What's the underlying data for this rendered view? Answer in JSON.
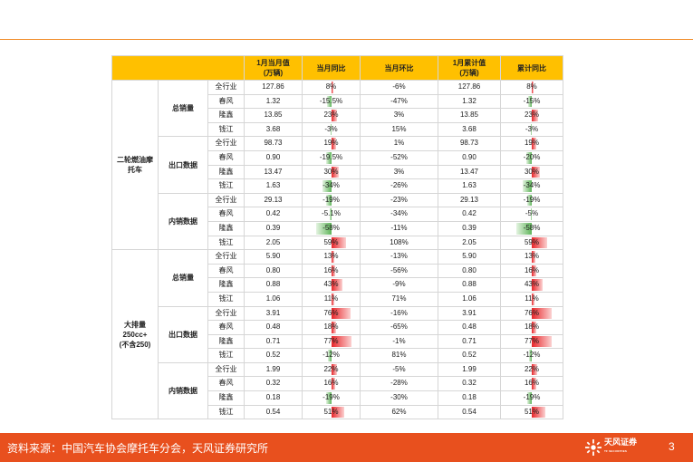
{
  "headers": {
    "month_value": "1月当月值\n(万辆)",
    "month_yoy": "当月同比",
    "month_mom": "当月环比",
    "cum_value": "1月累计值\n(万辆)",
    "cum_yoy": "累计同比"
  },
  "categories": {
    "fuel_moto": "二轮燃油摩\n托车",
    "large_disp": "大排量\n250cc+\n(不含250)"
  },
  "subgroups": {
    "total": "总销量",
    "export": "出口数据",
    "domestic": "内销数据"
  },
  "rows": [
    {
      "company": "全行业",
      "month": "127.86",
      "yoy": "8%",
      "yoy_pct": 8,
      "mom": "-6%",
      "cum": "127.86",
      "cum_yoy": "8%",
      "cum_yoy_pct": 8
    },
    {
      "company": "春风",
      "month": "1.32",
      "yoy": "-15.5%",
      "yoy_pct": -15.5,
      "mom": "-47%",
      "cum": "1.32",
      "cum_yoy": "-15%",
      "cum_yoy_pct": -15
    },
    {
      "company": "隆鑫",
      "month": "13.85",
      "yoy": "23%",
      "yoy_pct": 23,
      "mom": "3%",
      "cum": "13.85",
      "cum_yoy": "23%",
      "cum_yoy_pct": 23
    },
    {
      "company": "钱江",
      "month": "3.68",
      "yoy": "-3%",
      "yoy_pct": -3,
      "mom": "15%",
      "cum": "3.68",
      "cum_yoy": "-3%",
      "cum_yoy_pct": -3
    },
    {
      "company": "全行业",
      "month": "98.73",
      "yoy": "19%",
      "yoy_pct": 19,
      "mom": "1%",
      "cum": "98.73",
      "cum_yoy": "19%",
      "cum_yoy_pct": 19
    },
    {
      "company": "春风",
      "month": "0.90",
      "yoy": "-19.5%",
      "yoy_pct": -19.5,
      "mom": "-52%",
      "cum": "0.90",
      "cum_yoy": "-20%",
      "cum_yoy_pct": -20
    },
    {
      "company": "隆鑫",
      "month": "13.47",
      "yoy": "30%",
      "yoy_pct": 30,
      "mom": "3%",
      "cum": "13.47",
      "cum_yoy": "30%",
      "cum_yoy_pct": 30
    },
    {
      "company": "钱江",
      "month": "1.63",
      "yoy": "-34%",
      "yoy_pct": -34,
      "mom": "-26%",
      "cum": "1.63",
      "cum_yoy": "-34%",
      "cum_yoy_pct": -34
    },
    {
      "company": "全行业",
      "month": "29.13",
      "yoy": "-19%",
      "yoy_pct": -19,
      "mom": "-23%",
      "cum": "29.13",
      "cum_yoy": "-19%",
      "cum_yoy_pct": -19
    },
    {
      "company": "春风",
      "month": "0.42",
      "yoy": "-5.1%",
      "yoy_pct": -5.1,
      "mom": "-34%",
      "cum": "0.42",
      "cum_yoy": "-5%",
      "cum_yoy_pct": -5
    },
    {
      "company": "隆鑫",
      "month": "0.39",
      "yoy": "-58%",
      "yoy_pct": -58,
      "mom": "-11%",
      "cum": "0.39",
      "cum_yoy": "-58%",
      "cum_yoy_pct": -58
    },
    {
      "company": "钱江",
      "month": "2.05",
      "yoy": "59%",
      "yoy_pct": 59,
      "mom": "108%",
      "cum": "2.05",
      "cum_yoy": "59%",
      "cum_yoy_pct": 59
    },
    {
      "company": "全行业",
      "month": "5.90",
      "yoy": "13%",
      "yoy_pct": 13,
      "mom": "-13%",
      "cum": "5.90",
      "cum_yoy": "13%",
      "cum_yoy_pct": 13
    },
    {
      "company": "春风",
      "month": "0.80",
      "yoy": "16%",
      "yoy_pct": 16,
      "mom": "-56%",
      "cum": "0.80",
      "cum_yoy": "16%",
      "cum_yoy_pct": 16
    },
    {
      "company": "隆鑫",
      "month": "0.88",
      "yoy": "43%",
      "yoy_pct": 43,
      "mom": "-9%",
      "cum": "0.88",
      "cum_yoy": "43%",
      "cum_yoy_pct": 43
    },
    {
      "company": "钱江",
      "month": "1.06",
      "yoy": "11%",
      "yoy_pct": 11,
      "mom": "71%",
      "cum": "1.06",
      "cum_yoy": "11%",
      "cum_yoy_pct": 11
    },
    {
      "company": "全行业",
      "month": "3.91",
      "yoy": "76%",
      "yoy_pct": 76,
      "mom": "-16%",
      "cum": "3.91",
      "cum_yoy": "76%",
      "cum_yoy_pct": 76
    },
    {
      "company": "春风",
      "month": "0.48",
      "yoy": "18%",
      "yoy_pct": 18,
      "mom": "-65%",
      "cum": "0.48",
      "cum_yoy": "18%",
      "cum_yoy_pct": 18
    },
    {
      "company": "隆鑫",
      "month": "0.71",
      "yoy": "77%",
      "yoy_pct": 77,
      "mom": "-1%",
      "cum": "0.71",
      "cum_yoy": "77%",
      "cum_yoy_pct": 77
    },
    {
      "company": "钱江",
      "month": "0.52",
      "yoy": "-12%",
      "yoy_pct": -12,
      "mom": "81%",
      "cum": "0.52",
      "cum_yoy": "-12%",
      "cum_yoy_pct": -12
    },
    {
      "company": "全行业",
      "month": "1.99",
      "yoy": "22%",
      "yoy_pct": 22,
      "mom": "-5%",
      "cum": "1.99",
      "cum_yoy": "22%",
      "cum_yoy_pct": 22
    },
    {
      "company": "春风",
      "month": "0.32",
      "yoy": "16%",
      "yoy_pct": 16,
      "mom": "-28%",
      "cum": "0.32",
      "cum_yoy": "16%",
      "cum_yoy_pct": 16
    },
    {
      "company": "隆鑫",
      "month": "0.18",
      "yoy": "-19%",
      "yoy_pct": -19,
      "mom": "-30%",
      "cum": "0.18",
      "cum_yoy": "-19%",
      "cum_yoy_pct": -19
    },
    {
      "company": "钱江",
      "month": "0.54",
      "yoy": "51%",
      "yoy_pct": 51,
      "mom": "62%",
      "cum": "0.54",
      "cum_yoy": "51%",
      "cum_yoy_pct": 51
    }
  ],
  "colors": {
    "accent": "#e8501e",
    "header_bg": "#ffc000",
    "positive_bar": "#e8262a",
    "negative_bar": "#5fb55a"
  },
  "footer": {
    "source": "资料来源：中国汽车协会摩托车分会，天风证券研究所",
    "logo_text": "天风证券",
    "logo_sub": "TF SECURITIES",
    "page_number": "3"
  }
}
